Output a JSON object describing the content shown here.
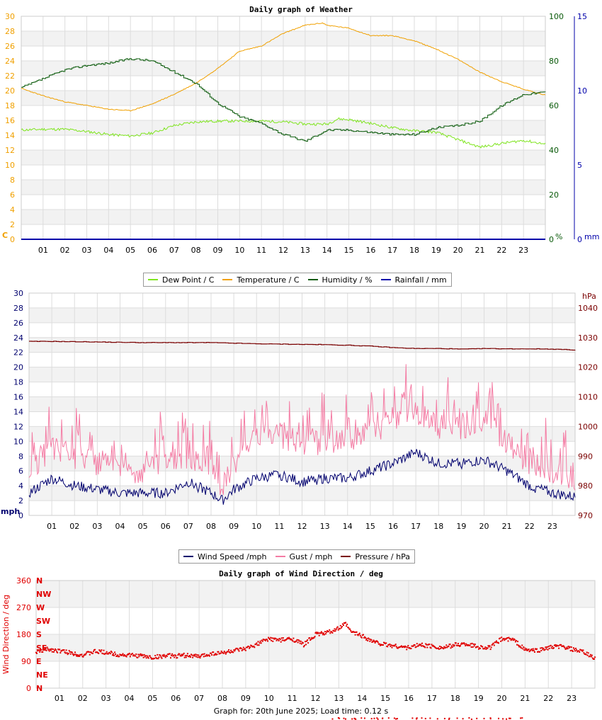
{
  "colors": {
    "dew": "#7fe51f",
    "temp": "#f0a000",
    "humidity": "#0a5a0a",
    "rain": "#0000aa",
    "wind": "#00006e",
    "gust": "#f47ca4",
    "pressure": "#7a0000",
    "direction": "#e00000",
    "grid_band": "#f2f2f2",
    "grid_line": "#dddddd"
  },
  "footer": {
    "text": "Graph for: 20th June 2025; Load time: 0.12 s"
  },
  "chart_data": [
    {
      "type": "line",
      "title": "Daily graph of Weather",
      "x_ticks": [
        "01",
        "02",
        "03",
        "04",
        "05",
        "06",
        "07",
        "08",
        "09",
        "10",
        "11",
        "12",
        "13",
        "14",
        "15",
        "16",
        "17",
        "18",
        "19",
        "20",
        "21",
        "22",
        "23"
      ],
      "x_range_hours": [
        0,
        24
      ],
      "left_axis": {
        "unit": "C",
        "range": [
          0,
          30
        ],
        "ticks": [
          0,
          2,
          4,
          6,
          8,
          10,
          12,
          14,
          16,
          18,
          20,
          22,
          24,
          26,
          28,
          30
        ]
      },
      "right_axis_1": {
        "unit": "%",
        "range": [
          0,
          100
        ],
        "ticks": [
          0,
          20,
          40,
          60,
          80,
          100
        ]
      },
      "right_axis_2": {
        "unit": "mm",
        "range": [
          0,
          15
        ],
        "ticks": [
          0,
          5,
          10,
          15
        ]
      },
      "series": [
        {
          "name": "Dew Point / C",
          "axis": "left",
          "x": [
            0,
            1,
            2,
            3,
            4,
            5,
            6,
            7,
            8,
            9,
            10,
            11,
            12,
            13,
            14,
            14.5,
            15,
            16,
            17,
            18,
            19,
            20,
            21,
            22,
            23,
            24
          ],
          "y": [
            14.7,
            14.8,
            14.8,
            14.5,
            14.1,
            13.9,
            14.3,
            15.3,
            15.8,
            15.9,
            15.9,
            15.9,
            15.8,
            15.5,
            15.5,
            16.2,
            16.1,
            15.6,
            15.0,
            14.6,
            14.4,
            13.4,
            12.4,
            12.9,
            13.3,
            12.8
          ]
        },
        {
          "name": "Temperature / C",
          "axis": "left",
          "x": [
            0,
            1,
            2,
            3,
            4,
            5,
            6,
            7,
            8,
            9,
            10,
            11,
            12,
            13,
            13.8,
            14,
            15,
            16,
            17,
            18,
            19,
            20,
            21,
            22,
            23,
            24
          ],
          "y": [
            20.3,
            19.3,
            18.5,
            18.0,
            17.5,
            17.3,
            18.2,
            19.5,
            21.0,
            23.0,
            25.3,
            26.0,
            27.7,
            28.8,
            29.1,
            28.8,
            28.4,
            27.4,
            27.4,
            26.7,
            25.6,
            24.2,
            22.5,
            21.2,
            20.2,
            19.4
          ]
        },
        {
          "name": "Humidity / %",
          "axis": "right_1",
          "x": [
            0,
            1,
            2,
            3,
            4,
            5,
            6,
            7,
            8,
            9,
            10,
            11,
            12,
            13,
            14,
            15,
            16,
            17,
            18,
            19,
            20,
            21,
            22,
            23,
            24
          ],
          "y": [
            68,
            72,
            76,
            78,
            79,
            81,
            80,
            75,
            70,
            61,
            55,
            52,
            47,
            44,
            49,
            49,
            48,
            47,
            47,
            50,
            51,
            53,
            60,
            65,
            66
          ]
        },
        {
          "name": "Rainfall / mm",
          "axis": "right_2",
          "x": [
            0,
            24
          ],
          "y": [
            0,
            0
          ]
        }
      ]
    },
    {
      "type": "line",
      "title": "",
      "x_ticks": [
        "01",
        "02",
        "03",
        "04",
        "05",
        "06",
        "07",
        "08",
        "09",
        "10",
        "11",
        "12",
        "13",
        "14",
        "15",
        "16",
        "17",
        "18",
        "19",
        "20",
        "21",
        "22",
        "23"
      ],
      "x_range_hours": [
        0,
        24
      ],
      "left_axis": {
        "unit": "mph",
        "range": [
          0,
          30
        ],
        "ticks": [
          0,
          2,
          4,
          6,
          8,
          10,
          12,
          14,
          16,
          18,
          20,
          22,
          24,
          26,
          28,
          30
        ]
      },
      "right_axis": {
        "unit": "hPa",
        "range": [
          970,
          1045
        ],
        "ticks": [
          970,
          980,
          990,
          1000,
          1010,
          1020,
          1030,
          1040
        ]
      },
      "series": [
        {
          "name": "Wind Speed /mph",
          "axis": "left",
          "x": [
            0,
            1,
            2,
            3,
            4,
            5,
            6,
            7,
            8,
            8.5,
            9,
            10,
            11,
            12,
            13,
            14,
            15,
            16,
            17,
            18,
            19,
            20,
            21,
            22,
            23,
            24
          ],
          "y": [
            3,
            5,
            4,
            3.5,
            3,
            3,
            3,
            4.5,
            3,
            2,
            3.5,
            5,
            5.5,
            4.5,
            5,
            5,
            6,
            7,
            8.5,
            7,
            7,
            7.5,
            6,
            4,
            3,
            2.5
          ]
        },
        {
          "name": "Gust / mph",
          "axis": "left",
          "x": [
            0,
            1,
            2,
            3,
            4,
            5,
            6,
            7,
            8,
            8.5,
            9,
            10,
            11,
            12,
            13,
            14,
            15,
            16,
            17,
            18,
            19,
            20,
            21,
            22,
            23,
            24
          ],
          "y": [
            6,
            9,
            8,
            7,
            6,
            6,
            7,
            8,
            6,
            4,
            7,
            11,
            11,
            9,
            10,
            10,
            11,
            13,
            14,
            12,
            12,
            13,
            10,
            7,
            6,
            5
          ]
        },
        {
          "name": "Pressure / hPa",
          "axis": "right",
          "x": [
            0,
            1,
            2,
            3,
            4,
            5,
            6,
            7,
            8,
            9,
            10,
            11,
            12,
            13,
            14,
            15,
            16,
            17,
            18,
            19,
            20,
            21,
            22,
            23,
            24
          ],
          "y": [
            1028.7,
            1028.7,
            1028.6,
            1028.5,
            1028.4,
            1028.3,
            1028.3,
            1028.3,
            1028.3,
            1028.1,
            1027.9,
            1027.8,
            1027.7,
            1027.6,
            1027.4,
            1027.1,
            1026.6,
            1026.3,
            1026.3,
            1026.1,
            1026.3,
            1026.2,
            1026.2,
            1026.1,
            1025.8
          ]
        }
      ]
    },
    {
      "type": "scatter",
      "title": "Daily graph of Wind Direction / deg",
      "ylabel": "Wind Direction / deg",
      "x_ticks": [
        "01",
        "02",
        "03",
        "04",
        "05",
        "06",
        "07",
        "08",
        "09",
        "10",
        "11",
        "12",
        "13",
        "14",
        "15",
        "16",
        "17",
        "18",
        "19",
        "20",
        "21",
        "22",
        "23"
      ],
      "x_range_hours": [
        0,
        24
      ],
      "y_range": [
        0,
        360
      ],
      "y_ticks": [
        0,
        90,
        180,
        270,
        360
      ],
      "compass_labels": [
        "N",
        "NE",
        "E",
        "SE",
        "S",
        "SW",
        "W",
        "NW",
        "N"
      ],
      "series": [
        {
          "name": "Wind Direction / deg",
          "x": [
            0,
            0.5,
            1,
            1.5,
            2,
            2.5,
            3,
            3.5,
            4,
            4.5,
            5,
            5.5,
            6,
            6.5,
            7,
            7.5,
            8,
            8.5,
            9,
            9.5,
            10,
            10.5,
            11,
            11.5,
            12,
            12.5,
            13,
            13.3,
            13.5,
            14,
            14.5,
            15,
            15.5,
            16,
            16.5,
            17,
            17.5,
            18,
            18.5,
            19,
            19.5,
            20,
            20.5,
            21,
            21.5,
            22,
            22.5,
            23,
            23.5,
            24
          ],
          "y": [
            120,
            130,
            125,
            118,
            110,
            122,
            120,
            112,
            110,
            108,
            102,
            108,
            108,
            110,
            105,
            115,
            118,
            125,
            130,
            148,
            165,
            160,
            165,
            145,
            180,
            185,
            200,
            215,
            190,
            175,
            155,
            145,
            140,
            135,
            145,
            140,
            135,
            145,
            148,
            138,
            135,
            165,
            162,
            128,
            125,
            135,
            140,
            130,
            120,
            100
          ]
        }
      ]
    }
  ]
}
